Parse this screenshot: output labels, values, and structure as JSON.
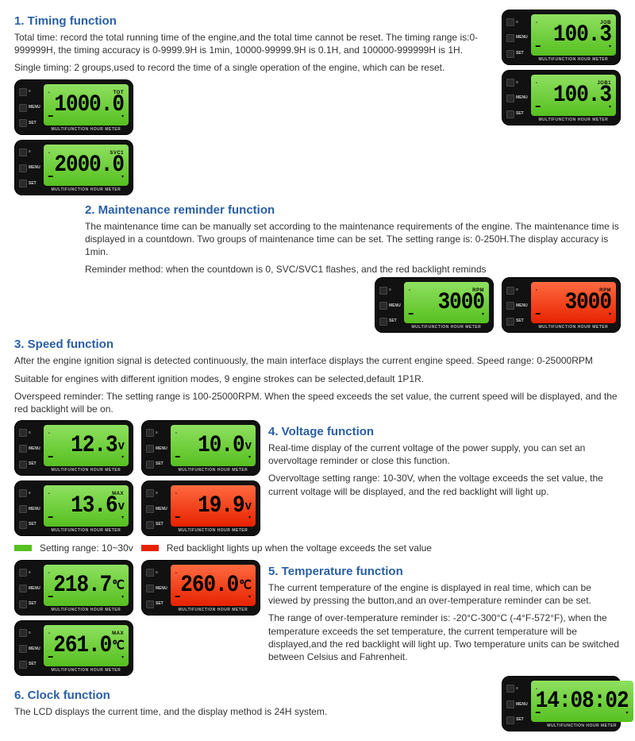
{
  "device_label": "MULTIFUNCTION HOUR METER",
  "buttons": [
    "MENU",
    "SET"
  ],
  "meter_icon_top": "≡",
  "s1": {
    "title": "1. Timing function",
    "p1": "Total time: record the total running time of the engine,and the total time cannot be reset. The timing range is:0-999999H, the timing accuracy is 0-9999.9H is 1min, 10000-99999.9H is 0.1H, and 100000-999999H is 1H.",
    "p2": "Single timing: 2 groups,used to record the time of a single operation of the engine, which can be reset.",
    "m1": {
      "top": "TOT",
      "val": "1000.0",
      "color": "green"
    },
    "m2": {
      "top": "SVC1",
      "val": "2000.0",
      "color": "green"
    },
    "m3": {
      "top": "JOB",
      "val": "100.3",
      "color": "green"
    },
    "m4": {
      "top": "JOB1",
      "val": "100.3",
      "color": "green"
    }
  },
  "s2": {
    "title": "2. Maintenance reminder function",
    "p1": "The maintenance time can be manually set according to the maintenance requirements of the engine. The maintenance time is displayed in a countdown. Two groups of maintenance time can be set. The setting range is: 0-250H.The display accuracy is 1min.",
    "p2": "Reminder method: when the countdown is 0, SVC/SVC1 flashes, and the red backlight reminds",
    "m1": {
      "top": "RPM",
      "val": "3000",
      "color": "green"
    },
    "m2": {
      "top": "RPM",
      "val": "3000",
      "color": "red"
    }
  },
  "s3": {
    "title": "3. Speed function",
    "p1": "After the engine ignition signal is detected continuously, the main interface displays the current engine speed. Speed range: 0-25000RPM",
    "p2": "Suitable for engines with different ignition modes, 9 engine strokes can be selected,default 1P1R.",
    "p3": "Overspeed reminder: The setting range is 100-25000RPM. When the speed exceeds the set value, the current speed will be displayed, and the red backlight will be on."
  },
  "s4": {
    "title": "4. Voltage function",
    "p1": "Real-time display of the current voltage of the power supply, you can set an overvoltage reminder or close this function.",
    "p2": "Overvoltage setting range: 10-30V, when the voltage exceeds the set value, the current voltage will be displayed, and the red backlight will light up.",
    "m1": {
      "top": "",
      "val": "12.3",
      "unit": "v",
      "color": "green"
    },
    "m2": {
      "top": "",
      "val": "10.0",
      "unit": "v",
      "color": "green"
    },
    "m3": {
      "top": "MAX",
      "val": "13.6",
      "unit": "v",
      "color": "green"
    },
    "m4": {
      "top": "",
      "val": "19.9",
      "unit": "v",
      "color": "red"
    },
    "legend1": "Setting range: 10~30v",
    "legend2": "Red backlight lights up when the voltage exceeds the set value"
  },
  "s5": {
    "title": "5. Temperature function",
    "p1": "The current temperature of the engine is displayed in real time, which can be viewed by pressing the button,and an over-temperature reminder can be set.",
    "p2": "The range of over-temperature reminder is: -20°C-300°C (-4°F-572°F), when the temperature exceeds the set temperature, the current temperature will be displayed,and the red backlight will light up. Two temperature units can be switched between Celsius and Fahrenheit.",
    "m1": {
      "top": "",
      "val": "218.7",
      "unit": "℃",
      "color": "green"
    },
    "m2": {
      "top": "",
      "val": "260.0",
      "unit": "℃",
      "color": "red"
    },
    "m3": {
      "top": "MAX",
      "val": "261.0",
      "unit": "℃",
      "color": "green"
    }
  },
  "s6": {
    "title": "6. Clock function",
    "p1": "The LCD displays the current time, and the display method is 24H system.",
    "m1": {
      "top": "",
      "val": "14:08:02",
      "color": "green"
    }
  },
  "colors": {
    "heading": "#2a5fa5",
    "green_bg": "#56c020",
    "red_bg": "#e62200",
    "device_bg": "#111111"
  }
}
